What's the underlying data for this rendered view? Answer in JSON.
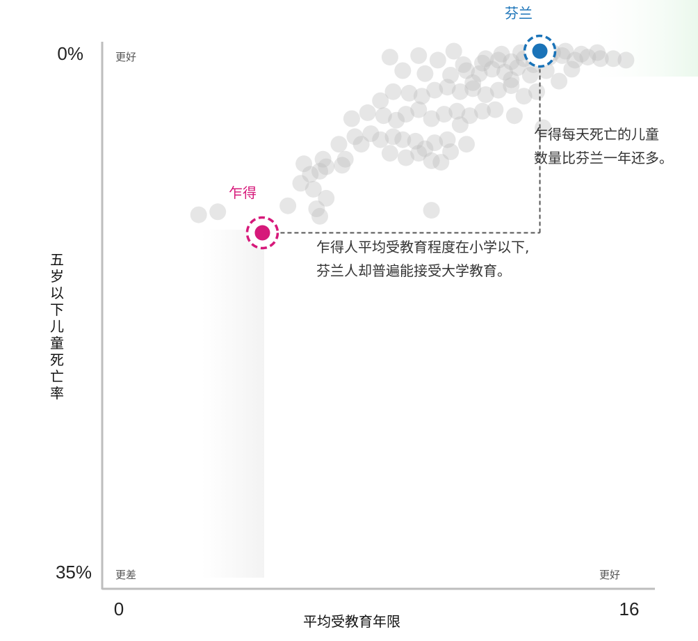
{
  "chart_data": {
    "type": "scatter",
    "xlabel": "平均受教育年限",
    "ylabel": "五岁以下儿童死亡率",
    "x_ticks": [
      "0",
      "16"
    ],
    "y_ticks": [
      "0%",
      "35%"
    ],
    "xlim": [
      0,
      16
    ],
    "ylim": [
      0,
      35
    ],
    "y_inverted": true,
    "corner_labels": {
      "top_left": "更好",
      "bottom_left": "更差",
      "bottom_right": "更好"
    },
    "highlighted": [
      {
        "name": "芬兰",
        "x": 13.2,
        "y": 0.3,
        "color": "#1a73b8"
      },
      {
        "name": "乍得",
        "x": 4.5,
        "y": 12.4,
        "color": "#d6197a"
      }
    ],
    "annotations": [
      {
        "lines": [
          "乍得每天死亡的儿童",
          "数量比芬兰一年还多。"
        ]
      },
      {
        "lines": [
          "乍得人平均受教育程度在小学以下,",
          "芬兰人却普遍能接受大学教育。"
        ]
      }
    ],
    "background_points": [
      [
        2.5,
        11.2
      ],
      [
        3.1,
        11.0
      ],
      [
        5.3,
        10.6
      ],
      [
        6.2,
        10.8
      ],
      [
        6.3,
        11.3
      ],
      [
        6.5,
        10.1
      ],
      [
        6.1,
        9.5
      ],
      [
        5.7,
        9.1
      ],
      [
        6.0,
        8.5
      ],
      [
        6.3,
        8.3
      ],
      [
        6.5,
        8.0
      ],
      [
        5.8,
        7.8
      ],
      [
        6.4,
        7.5
      ],
      [
        7.1,
        7.5
      ],
      [
        7.0,
        7.9
      ],
      [
        9.8,
        10.9
      ],
      [
        6.9,
        6.5
      ],
      [
        7.4,
        6.0
      ],
      [
        7.6,
        6.5
      ],
      [
        7.9,
        5.8
      ],
      [
        8.2,
        6.2
      ],
      [
        8.6,
        6.0
      ],
      [
        8.9,
        6.2
      ],
      [
        9.3,
        6.3
      ],
      [
        9.6,
        6.8
      ],
      [
        9.9,
        6.4
      ],
      [
        10.3,
        6.2
      ],
      [
        10.7,
        5.2
      ],
      [
        8.5,
        7.1
      ],
      [
        9.0,
        7.4
      ],
      [
        9.4,
        7.1
      ],
      [
        9.8,
        7.6
      ],
      [
        10.1,
        7.7
      ],
      [
        10.4,
        7.0
      ],
      [
        10.9,
        6.5
      ],
      [
        7.3,
        4.8
      ],
      [
        7.8,
        4.4
      ],
      [
        8.3,
        4.6
      ],
      [
        8.7,
        4.9
      ],
      [
        9.0,
        4.5
      ],
      [
        9.4,
        4.2
      ],
      [
        9.8,
        4.8
      ],
      [
        10.2,
        4.5
      ],
      [
        10.6,
        4.3
      ],
      [
        11.0,
        4.6
      ],
      [
        11.4,
        4.3
      ],
      [
        11.8,
        4.2
      ],
      [
        12.4,
        4.6
      ],
      [
        13.3,
        5.4
      ],
      [
        8.2,
        3.6
      ],
      [
        8.6,
        3.0
      ],
      [
        9.1,
        3.1
      ],
      [
        9.5,
        3.3
      ],
      [
        9.9,
        2.9
      ],
      [
        10.3,
        2.7
      ],
      [
        10.7,
        3.0
      ],
      [
        11.1,
        2.8
      ],
      [
        11.5,
        3.2
      ],
      [
        11.9,
        2.9
      ],
      [
        12.3,
        2.6
      ],
      [
        12.7,
        3.3
      ],
      [
        13.1,
        3.0
      ],
      [
        8.9,
        1.6
      ],
      [
        9.6,
        1.8
      ],
      [
        10.4,
        1.9
      ],
      [
        10.9,
        1.6
      ],
      [
        11.3,
        1.8
      ],
      [
        11.7,
        1.5
      ],
      [
        12.1,
        1.7
      ],
      [
        12.5,
        1.4
      ],
      [
        12.9,
        1.9
      ],
      [
        13.4,
        1.6
      ],
      [
        13.8,
        2.3
      ],
      [
        14.2,
        1.5
      ],
      [
        10.8,
        1.2
      ],
      [
        11.4,
        1.1
      ],
      [
        11.9,
        0.9
      ],
      [
        12.3,
        1.0
      ],
      [
        12.7,
        0.8
      ],
      [
        13.0,
        1.2
      ],
      [
        13.5,
        0.7
      ],
      [
        13.9,
        0.6
      ],
      [
        14.3,
        0.9
      ],
      [
        14.7,
        0.7
      ],
      [
        15.1,
        0.8
      ],
      [
        15.5,
        0.8
      ],
      [
        15.9,
        0.9
      ],
      [
        14.0,
        0.3
      ],
      [
        14.5,
        0.5
      ],
      [
        15.0,
        0.4
      ],
      [
        12.0,
        0.5
      ],
      [
        12.6,
        0.4
      ],
      [
        13.6,
        0.4
      ],
      [
        11.5,
        0.8
      ],
      [
        10.0,
        0.9
      ],
      [
        9.4,
        0.6
      ],
      [
        10.5,
        0.3
      ],
      [
        8.5,
        0.7
      ],
      [
        12.3,
        2.2
      ],
      [
        11.1,
        2.4
      ]
    ]
  }
}
